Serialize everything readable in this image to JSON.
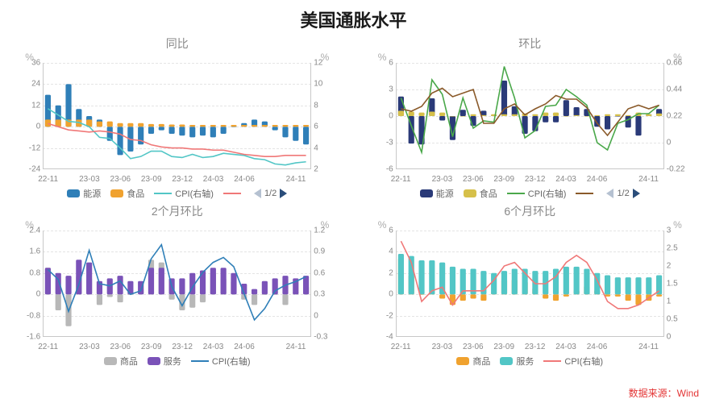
{
  "title": "美国通胀水平",
  "title_fontsize": 22,
  "source_label": "数据来源：Wind",
  "source_color": "#e33434",
  "background_color": "#ffffff",
  "text_color": "#888888",
  "grid_color": "#e4e4e4",
  "axis_color": "#c8c8c8",
  "font_family": "Microsoft YaHei",
  "x_labels": [
    "22-11",
    "23-03",
    "23-06",
    "23-09",
    "23-12",
    "24-03",
    "24-06",
    "24-11"
  ],
  "x_label_fontsize": 10,
  "y_label_fontsize": 10,
  "subtitle_fontsize": 14,
  "legend_nav": "1/2",
  "panels": [
    {
      "subtitle": "同比",
      "y_left": {
        "min": -24,
        "max": 36,
        "step": 12,
        "unit": "%"
      },
      "y_right": {
        "min": 2,
        "max": 12,
        "step": 2,
        "unit": "%"
      },
      "series": [
        {
          "name": "能源",
          "type": "bar",
          "axis": "left",
          "color": "#2f7fb8",
          "values": [
            18,
            12,
            24,
            10,
            6,
            4,
            -8,
            -16,
            -14,
            -10,
            -4,
            -2,
            -4,
            -5,
            -6,
            -5,
            -6,
            -4,
            0,
            2,
            4,
            3,
            -2,
            -6,
            -8,
            -10
          ]
        },
        {
          "name": "食品",
          "type": "bar",
          "axis": "left",
          "color": "#f0a22f",
          "values": [
            4,
            4,
            4,
            4,
            4,
            3,
            3,
            2,
            2,
            2,
            1.5,
            1.5,
            1.2,
            1.2,
            1,
            1,
            1,
            1,
            1,
            1,
            1,
            1,
            1,
            1,
            1,
            1
          ]
        },
        {
          "name": "CPI(右轴)",
          "type": "line",
          "axis": "right",
          "color": "#52c6c6",
          "values": [
            7.7,
            7.1,
            6.5,
            6.4,
            6.0,
            5.0,
            4.9,
            4.0,
            3.0,
            3.2,
            3.7,
            3.7,
            3.2,
            3.1,
            3.4,
            3.1,
            3.2,
            3.5,
            3.4,
            3.3,
            3.0,
            2.9,
            2.5,
            2.4,
            2.6,
            2.7
          ]
        },
        {
          "name": "",
          "type": "line",
          "axis": "right",
          "color": "#f07878",
          "values": [
            6.3,
            6.0,
            5.7,
            5.6,
            5.5,
            5.6,
            5.5,
            5.3,
            4.8,
            4.7,
            4.3,
            4.1,
            4.0,
            4.0,
            3.9,
            3.9,
            3.8,
            3.8,
            3.6,
            3.4,
            3.3,
            3.2,
            3.2,
            3.3,
            3.3,
            3.3
          ]
        }
      ],
      "legend": [
        {
          "label": "能源",
          "color": "#2f7fb8",
          "shape": "bar"
        },
        {
          "label": "食品",
          "color": "#f0a22f",
          "shape": "bar"
        },
        {
          "label": "CPI(右轴)",
          "color": "#52c6c6",
          "shape": "line"
        },
        {
          "label": "",
          "color": "#f07878",
          "shape": "line"
        }
      ],
      "show_nav": true
    },
    {
      "subtitle": "环比",
      "y_left": {
        "min": -6,
        "max": 6,
        "step": 3,
        "unit": "%"
      },
      "y_right": {
        "min": -0.22,
        "max": 0.66,
        "step": 0.22,
        "unit": "%"
      },
      "series": [
        {
          "name": "能源",
          "type": "bar",
          "axis": "left",
          "color": "#2a3a78",
          "values": [
            2.2,
            -3.1,
            -3.2,
            2.0,
            -0.5,
            -2.7,
            0.7,
            -1.1,
            0.6,
            0.1,
            4.0,
            1.1,
            -2.0,
            -1.7,
            -0.7,
            -0.7,
            1.8,
            1.0,
            0.8,
            -1.2,
            -1.5,
            0.0,
            -1.3,
            -2.2,
            0.2,
            0.8
          ]
        },
        {
          "name": "食品",
          "type": "bar",
          "axis": "left",
          "color": "#d6c04a",
          "values": [
            0.6,
            0.5,
            0.4,
            0.5,
            0.4,
            0.0,
            0.0,
            0.2,
            0.1,
            0.2,
            0.2,
            0.2,
            0.3,
            0.2,
            0.4,
            0.4,
            0.0,
            0.1,
            0.0,
            0.1,
            0.2,
            0.2,
            0.1,
            0.4,
            0.2,
            0.3
          ]
        },
        {
          "name": "CPI(右轴)",
          "type": "line",
          "axis": "right",
          "color": "#4aa84a",
          "values": [
            0.37,
            0.14,
            -0.08,
            0.52,
            0.4,
            0.05,
            0.37,
            0.12,
            0.18,
            0.17,
            0.63,
            0.37,
            0.04,
            0.1,
            0.3,
            0.31,
            0.44,
            0.38,
            0.31,
            0.0,
            -0.06,
            0.16,
            0.19,
            0.24,
            0.24,
            0.31
          ]
        },
        {
          "name": "",
          "type": "line",
          "axis": "right",
          "color": "#8a5a2a",
          "values": [
            0.28,
            0.26,
            0.3,
            0.41,
            0.45,
            0.38,
            0.41,
            0.44,
            0.16,
            0.16,
            0.28,
            0.32,
            0.23,
            0.28,
            0.32,
            0.39,
            0.36,
            0.36,
            0.29,
            0.16,
            0.06,
            0.17,
            0.28,
            0.31,
            0.28,
            0.31
          ]
        }
      ],
      "legend": [
        {
          "label": "能源",
          "color": "#2a3a78",
          "shape": "bar"
        },
        {
          "label": "食品",
          "color": "#d6c04a",
          "shape": "bar"
        },
        {
          "label": "CPI(右轴)",
          "color": "#4aa84a",
          "shape": "line"
        },
        {
          "label": "",
          "color": "#8a5a2a",
          "shape": "line"
        }
      ],
      "show_nav": true
    },
    {
      "subtitle": "2个月环比",
      "y_left": {
        "min": -1.6,
        "max": 2.4,
        "step": 0.8,
        "unit": "%"
      },
      "y_right": {
        "min": -0.3,
        "max": 1.2,
        "step": 0.3,
        "unit": "%"
      },
      "series": [
        {
          "name": "商品",
          "type": "bar",
          "axis": "left",
          "color": "#b8b8b8",
          "values": [
            1.0,
            -0.6,
            -1.2,
            0.7,
            0.6,
            -0.4,
            -0.1,
            -0.3,
            0.0,
            0.2,
            1.3,
            1.2,
            -0.2,
            -0.6,
            -0.5,
            -0.3,
            0.8,
            0.6,
            0.5,
            -0.2,
            -0.4,
            0.0,
            0.0,
            -0.4,
            0.1,
            0.3
          ]
        },
        {
          "name": "服务",
          "type": "bar",
          "axis": "left",
          "color": "#7a52b8",
          "values": [
            1.0,
            0.8,
            0.7,
            1.3,
            1.2,
            0.5,
            0.6,
            0.7,
            0.5,
            0.5,
            1.0,
            1.0,
            0.6,
            0.6,
            0.8,
            0.9,
            1.0,
            1.0,
            0.8,
            0.4,
            0.2,
            0.5,
            0.6,
            0.7,
            0.6,
            0.7
          ]
        },
        {
          "name": "CPI(右轴)",
          "type": "line",
          "axis": "right",
          "color": "#2f7fb8",
          "values": [
            0.65,
            0.51,
            0.06,
            0.44,
            0.92,
            0.45,
            0.42,
            0.49,
            0.3,
            0.35,
            0.8,
            1.0,
            0.41,
            0.14,
            0.4,
            0.61,
            0.75,
            0.82,
            0.69,
            0.31,
            -0.06,
            0.1,
            0.35,
            0.43,
            0.48,
            0.55
          ]
        }
      ],
      "legend": [
        {
          "label": "商品",
          "color": "#b8b8b8",
          "shape": "bar"
        },
        {
          "label": "服务",
          "color": "#7a52b8",
          "shape": "bar"
        },
        {
          "label": "CPI(右轴)",
          "color": "#2f7fb8",
          "shape": "line"
        }
      ],
      "show_nav": false
    },
    {
      "subtitle": "6个月环比",
      "y_left": {
        "min": -4,
        "max": 6,
        "step": 2,
        "unit": "%"
      },
      "y_right": {
        "min": 0,
        "max": 3,
        "step": 0.5,
        "unit": "%"
      },
      "series": [
        {
          "name": "商品",
          "type": "bar",
          "axis": "left",
          "color": "#f0a22f",
          "values": [
            3.4,
            1.8,
            0.0,
            0.2,
            -0.4,
            -1.0,
            -0.6,
            -0.4,
            -0.6,
            0.2,
            1.4,
            1.4,
            1.2,
            0.6,
            -0.4,
            -0.6,
            -0.2,
            0.4,
            0.8,
            0.4,
            -0.2,
            -0.2,
            -0.6,
            -1.0,
            -0.6,
            -0.2
          ]
        },
        {
          "name": "服务",
          "type": "bar",
          "axis": "left",
          "color": "#52c6c6",
          "values": [
            3.8,
            3.6,
            3.2,
            3.2,
            3.0,
            2.6,
            2.4,
            2.4,
            2.2,
            2.0,
            2.2,
            2.4,
            2.4,
            2.2,
            2.2,
            2.4,
            2.6,
            2.6,
            2.4,
            2.0,
            1.8,
            1.6,
            1.6,
            1.6,
            1.6,
            1.8
          ]
        },
        {
          "name": "CPI(右轴)",
          "type": "line",
          "axis": "right",
          "color": "#f07878",
          "values": [
            2.7,
            2.1,
            1.0,
            1.3,
            1.4,
            0.9,
            1.3,
            1.3,
            1.3,
            1.6,
            2.0,
            2.1,
            1.8,
            1.5,
            1.5,
            1.7,
            2.1,
            2.3,
            2.1,
            1.6,
            1.0,
            0.8,
            0.8,
            0.9,
            1.1,
            1.3
          ]
        }
      ],
      "legend": [
        {
          "label": "商品",
          "color": "#f0a22f",
          "shape": "bar"
        },
        {
          "label": "服务",
          "color": "#52c6c6",
          "shape": "bar"
        },
        {
          "label": "CPI(右轴)",
          "color": "#f07878",
          "shape": "line"
        }
      ],
      "show_nav": false
    }
  ]
}
